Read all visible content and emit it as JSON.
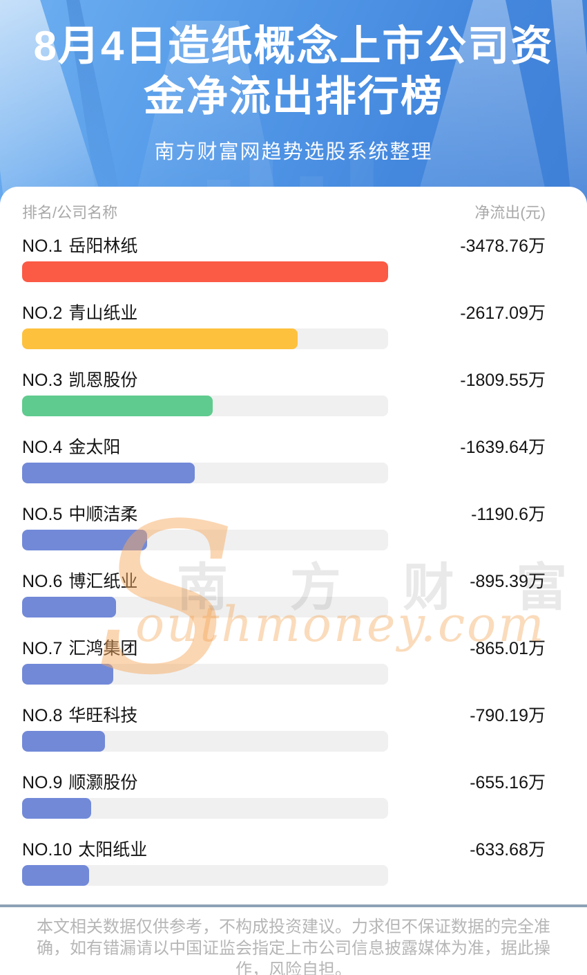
{
  "header": {
    "title_line1": "8月4日造纸概念上市公司资",
    "title_line2": "金净流出排行榜",
    "subtitle": "南方财富网趋势选股系统整理"
  },
  "table": {
    "col_rank": "排名/公司名称",
    "col_value": "净流出(元)",
    "max_magnitude": 3478.76,
    "track_color": "#f0f0f0",
    "rows": [
      {
        "rank": "NO.1",
        "name": "岳阳林纸",
        "value": "-3478.76万",
        "magnitude": 3478.76,
        "color": "#fb5a45"
      },
      {
        "rank": "NO.2",
        "name": "青山纸业",
        "value": "-2617.09万",
        "magnitude": 2617.09,
        "color": "#fdc13e"
      },
      {
        "rank": "NO.3",
        "name": "凯恩股份",
        "value": "-1809.55万",
        "magnitude": 1809.55,
        "color": "#5fcb8e"
      },
      {
        "rank": "NO.4",
        "name": "金太阳",
        "value": "-1639.64万",
        "magnitude": 1639.64,
        "color": "#7289d8"
      },
      {
        "rank": "NO.5",
        "name": "中顺洁柔",
        "value": "-1190.6万",
        "magnitude": 1190.6,
        "color": "#7289d8"
      },
      {
        "rank": "NO.6",
        "name": "博汇纸业",
        "value": "-895.39万",
        "magnitude": 895.39,
        "color": "#7289d8"
      },
      {
        "rank": "NO.7",
        "name": "汇鸿集团",
        "value": "-865.01万",
        "magnitude": 865.01,
        "color": "#7289d8"
      },
      {
        "rank": "NO.8",
        "name": "华旺科技",
        "value": "-790.19万",
        "magnitude": 790.19,
        "color": "#7289d8"
      },
      {
        "rank": "NO.9",
        "name": "顺灏股份",
        "value": "-655.16万",
        "magnitude": 655.16,
        "color": "#7289d8"
      },
      {
        "rank": "NO.10",
        "name": "太阳纸业",
        "value": "-633.68万",
        "magnitude": 633.68,
        "color": "#7289d8"
      }
    ]
  },
  "watermark": {
    "initial": "S",
    "cn": "南 方 财 富 网",
    "en": "outhmoney.com"
  },
  "footer": {
    "line1": "本文相关数据仅供参考，不构成投资建议。力求但不保证数据的完全准",
    "line2": "确，如有错漏请以中国证监会指定上市公司信息披露媒体为准，据此操",
    "line3": "作，风险自担。"
  },
  "colors": {
    "header_gradient_start": "#6fb0f1",
    "header_gradient_end": "#3f7fd6",
    "bar_red": "#fb5a45",
    "bar_yellow": "#fdc13e",
    "bar_green": "#5fcb8e",
    "bar_blue": "#7289d8",
    "bar_track": "#f0f0f0",
    "divider": "#8ca2b6",
    "muted_text": "#a8a8a8",
    "footer_text": "#b6b6b6"
  },
  "chart_data": {
    "type": "bar",
    "orientation": "horizontal",
    "title": "8月4日造纸概念上市公司资金净流出排行榜",
    "subtitle": "南方财富网趋势选股系统整理",
    "categories": [
      "岳阳林纸",
      "青山纸业",
      "凯恩股份",
      "金太阳",
      "中顺洁柔",
      "博汇纸业",
      "汇鸿集团",
      "华旺科技",
      "顺灏股份",
      "太阳纸业"
    ],
    "values": [
      -3478.76,
      -2617.09,
      -1809.55,
      -1639.64,
      -1190.6,
      -895.39,
      -865.01,
      -790.19,
      -655.16,
      -633.68
    ],
    "value_labels": [
      "-3478.76万",
      "-2617.09万",
      "-1809.55万",
      "-1639.64万",
      "-1190.6万",
      "-895.39万",
      "-865.01万",
      "-790.19万",
      "-655.16万",
      "-633.68万"
    ],
    "unit": "万元",
    "xlabel": "净流出(元)",
    "bar_scale_max": 3478.76,
    "grid": false,
    "legend": false
  }
}
